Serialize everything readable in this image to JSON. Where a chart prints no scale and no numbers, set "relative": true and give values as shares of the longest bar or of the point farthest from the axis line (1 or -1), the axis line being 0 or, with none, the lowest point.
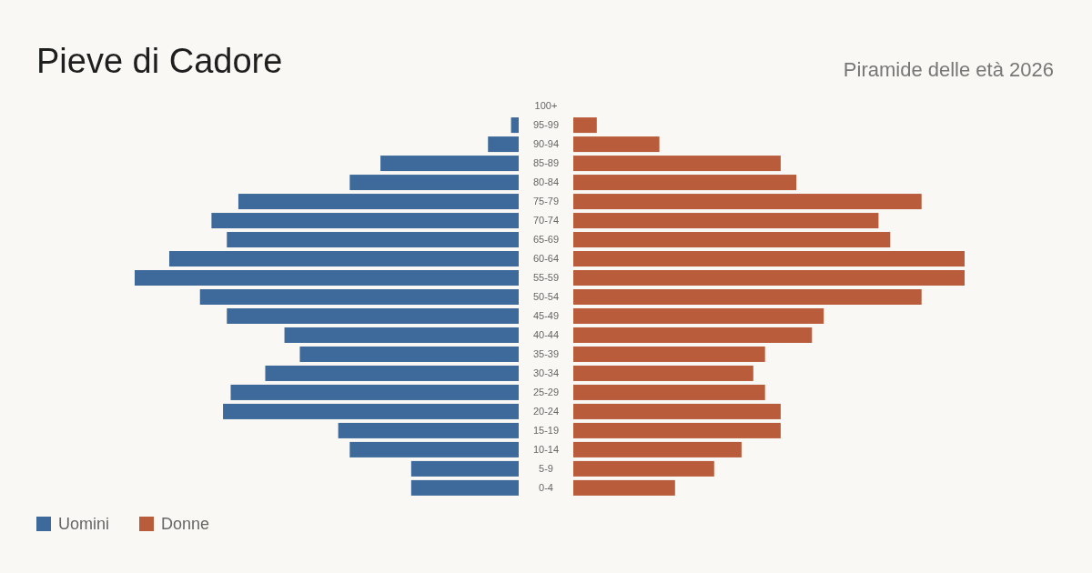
{
  "chart_data": [
    {
      "type": "bar",
      "orientation": "horizontal",
      "relative": true,
      "title": "Pieve di Cadore",
      "categories": [
        "100+",
        "95-99",
        "90-94",
        "85-89",
        "80-84",
        "75-79",
        "70-74",
        "65-69",
        "60-64",
        "55-59",
        "50-54",
        "45-49",
        "40-44",
        "35-39",
        "30-34",
        "25-29",
        "20-24",
        "15-19",
        "10-14",
        "5-9",
        "0-4"
      ],
      "series": [
        {
          "name": "Uomini",
          "color": "#3d6a9a",
          "values": [
            0,
            -0.02,
            -0.08,
            -0.36,
            -0.44,
            -0.73,
            -0.8,
            -0.76,
            -0.91,
            -1,
            -0.83,
            -0.76,
            -0.61,
            -0.57,
            -0.66,
            -0.75,
            -0.77,
            -0.47,
            -0.44,
            -0.28,
            -0.28
          ]
        }
      ],
      "legend": "bottom left"
    },
    {
      "type": "bar",
      "orientation": "horizontal",
      "relative": true,
      "subtitle": "Piramide delle età 2026",
      "tick_labels": false,
      "categories": [
        "100+",
        "95-99",
        "90-94",
        "85-89",
        "80-84",
        "75-79",
        "70-74",
        "65-69",
        "60-64",
        "55-59",
        "50-54",
        "45-49",
        "40-44",
        "35-39",
        "30-34",
        "25-29",
        "20-24",
        "15-19",
        "10-14",
        "5-9",
        "0-4"
      ],
      "series": [
        {
          "name": "Donne",
          "color": "#b95c3c",
          "values": [
            0,
            0.06,
            0.22,
            0.53,
            0.57,
            0.89,
            0.78,
            0.81,
            1,
            1,
            0.89,
            0.64,
            0.61,
            0.49,
            0.46,
            0.49,
            0.53,
            0.53,
            0.43,
            0.36,
            0.26
          ]
        }
      ],
      "legend": "bottom left"
    }
  ]
}
